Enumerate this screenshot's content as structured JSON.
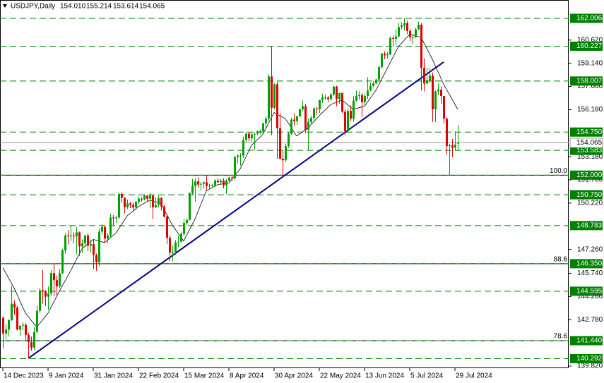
{
  "chart_data": {
    "type": "candlestick",
    "title": "USDJPY,Daily",
    "header_ohlc": [
      "154.010",
      "155.214",
      "153.614",
      "154.065"
    ],
    "up_color": "#00a000",
    "down_color": "#e00000",
    "xlim": [
      -1,
      200.25
    ],
    "ylim": [
      139.684,
      163.176
    ],
    "xticks": [
      {
        "value": 0,
        "label": "14 Dec 2023"
      },
      {
        "value": 16,
        "label": "9 Jan 2024"
      },
      {
        "value": 32,
        "label": "31 Jan 2024"
      },
      {
        "value": 48,
        "label": "22 Feb 2024"
      },
      {
        "value": 64,
        "label": "15 Mar 2024"
      },
      {
        "value": 80,
        "label": "8 Apr 2024"
      },
      {
        "value": 96,
        "label": "30 Apr 2024"
      },
      {
        "value": 112,
        "label": "22 May 2024"
      },
      {
        "value": 128,
        "label": "13 Jun 2024"
      },
      {
        "value": 144,
        "label": "5 Jul 2024"
      },
      {
        "value": 160,
        "label": "29 Jul 2024"
      }
    ],
    "yticks": [
      {
        "value": 160.62,
        "label": "160.620"
      },
      {
        "value": 159.14,
        "label": "159.140"
      },
      {
        "value": 157.66,
        "label": "157.660"
      },
      {
        "value": 156.18,
        "label": "156.180"
      },
      {
        "value": 153.18,
        "label": "153.180"
      },
      {
        "value": 151.7,
        "label": "151.700"
      },
      {
        "value": 150.22,
        "label": "150.220"
      },
      {
        "value": 147.26,
        "label": "147.260"
      },
      {
        "value": 145.74,
        "label": "145.740"
      },
      {
        "value": 144.26,
        "label": "144.260"
      },
      {
        "value": 142.78,
        "label": "142.780"
      },
      {
        "value": 139.82,
        "label": "139.820"
      }
    ],
    "levels": [
      162.006,
      160.227,
      158.007,
      {
        "value": 154.75,
        "label": "154.750"
      },
      153.583,
      {
        "value": 152,
        "label": "152.000"
      },
      {
        "value": 150.75,
        "label": "150.750"
      },
      148.783,
      {
        "value": 146.35,
        "label": "146.350"
      },
      144.595,
      {
        "value": 141.44,
        "label": "141.440"
      },
      140.292
    ],
    "level_color": "#008000",
    "fib_levels": [
      {
        "value": 152,
        "label": "100.0"
      },
      {
        "value": 146.35,
        "label": "88.6"
      },
      {
        "value": 141.44,
        "label": "78.6"
      }
    ],
    "current_price": {
      "value": 154.065,
      "label": "154.065"
    },
    "trendline": {
      "x": [
        9,
        156
      ],
      "values": [
        140.31,
        159.22
      ],
      "color": "#000080"
    },
    "ma": {
      "color": "#000000",
      "x": [
        0,
        4,
        8,
        12,
        16,
        20,
        24,
        28,
        32,
        36,
        40,
        44,
        48,
        52,
        56,
        60,
        64,
        68,
        72,
        76,
        80,
        84,
        88,
        92,
        96,
        100,
        104,
        108,
        112,
        116,
        120,
        124,
        128,
        132,
        136,
        140,
        144,
        148,
        152,
        156,
        161
      ],
      "values": [
        146.1,
        144.8,
        143.2,
        142.3,
        143.2,
        144.6,
        145.9,
        147.3,
        147.9,
        147.7,
        148.3,
        149.4,
        150.0,
        150.4,
        150.2,
        148.8,
        147.8,
        149.2,
        151.0,
        151.4,
        151.5,
        152.4,
        153.9,
        154.6,
        156.0,
        155.6,
        154.5,
        155.0,
        155.8,
        156.5,
        156.8,
        156.2,
        156.4,
        157.4,
        158.8,
        160.2,
        161.0,
        160.8,
        159.4,
        157.8,
        156.2
      ]
    },
    "candles": [
      [
        142.9,
        143.0,
        140.95,
        141.9
      ],
      [
        141.9,
        142.5,
        141.5,
        142.15
      ],
      [
        142.15,
        142.8,
        141.7,
        142.75
      ],
      [
        142.75,
        144.95,
        142.7,
        143.8
      ],
      [
        143.8,
        144.0,
        143.1,
        143.55
      ],
      [
        143.55,
        143.65,
        142.1,
        142.15
      ],
      [
        142.15,
        142.4,
        141.75,
        142.4
      ],
      [
        142.4,
        142.6,
        142.1,
        142.45
      ],
      [
        142.45,
        142.55,
        141.4,
        141.8
      ],
      [
        141.8,
        141.95,
        140.3,
        141.35
      ],
      [
        141.35,
        141.7,
        140.8,
        141.0
      ],
      [
        141.0,
        142.3,
        140.85,
        142.0
      ],
      [
        142.0,
        143.7,
        141.9,
        143.35
      ],
      [
        143.35,
        144.8,
        143.2,
        144.65
      ],
      [
        144.65,
        145.95,
        143.8,
        144.6
      ],
      [
        144.6,
        144.65,
        143.65,
        144.25
      ],
      [
        144.25,
        144.9,
        143.4,
        144.45
      ],
      [
        144.45,
        145.95,
        144.3,
        145.75
      ],
      [
        145.75,
        146.4,
        144.3,
        145.3
      ],
      [
        145.3,
        145.6,
        144.35,
        144.9
      ],
      [
        144.9,
        146.0,
        144.8,
        145.75
      ],
      [
        145.75,
        147.3,
        145.7,
        147.2
      ],
      [
        147.2,
        148.3,
        147.0,
        148.15
      ],
      [
        148.15,
        148.5,
        147.6,
        148.1
      ],
      [
        148.1,
        148.8,
        147.8,
        148.15
      ],
      [
        148.15,
        148.35,
        147.65,
        148.1
      ],
      [
        148.1,
        148.7,
        146.95,
        148.35
      ],
      [
        148.35,
        148.4,
        146.85,
        147.45
      ],
      [
        147.45,
        147.9,
        147.05,
        147.65
      ],
      [
        147.65,
        148.2,
        147.45,
        148.15
      ],
      [
        148.15,
        148.3,
        147.15,
        147.5
      ],
      [
        147.5,
        147.9,
        147.05,
        147.6
      ],
      [
        147.6,
        147.9,
        146.0,
        146.9
      ],
      [
        146.9,
        147.0,
        145.9,
        146.45
      ],
      [
        146.45,
        148.6,
        146.2,
        148.4
      ],
      [
        148.4,
        148.9,
        148.2,
        148.7
      ],
      [
        148.7,
        148.75,
        147.65,
        147.95
      ],
      [
        147.95,
        148.3,
        147.65,
        148.15
      ],
      [
        148.15,
        149.55,
        148.0,
        149.3
      ],
      [
        149.3,
        149.45,
        148.8,
        149.25
      ],
      [
        149.25,
        149.4,
        148.95,
        149.3
      ],
      [
        149.3,
        150.9,
        149.2,
        150.8
      ],
      [
        150.8,
        150.9,
        150.25,
        150.55
      ],
      [
        150.55,
        150.6,
        149.55,
        149.95
      ],
      [
        149.95,
        150.45,
        149.85,
        150.2
      ],
      [
        150.2,
        150.3,
        149.9,
        150.1
      ],
      [
        150.1,
        150.25,
        149.7,
        149.95
      ],
      [
        149.95,
        150.35,
        149.8,
        150.3
      ],
      [
        150.3,
        150.65,
        150.15,
        150.5
      ],
      [
        150.5,
        150.6,
        150.3,
        150.45
      ],
      [
        150.45,
        150.75,
        150.4,
        150.7
      ],
      [
        150.7,
        150.7,
        150.3,
        150.5
      ],
      [
        150.5,
        150.85,
        149.9,
        150.7
      ],
      [
        150.7,
        150.7,
        149.2,
        149.95
      ],
      [
        149.95,
        150.6,
        149.9,
        150.1
      ],
      [
        150.1,
        150.7,
        149.95,
        150.55
      ],
      [
        150.55,
        150.6,
        149.75,
        150.0
      ],
      [
        150.0,
        150.1,
        149.3,
        149.35
      ],
      [
        149.35,
        149.45,
        147.6,
        148.0
      ],
      [
        148.0,
        148.15,
        146.5,
        147.05
      ],
      [
        147.05,
        147.5,
        146.5,
        147.1
      ],
      [
        147.1,
        147.85,
        146.9,
        147.7
      ],
      [
        147.7,
        148.15,
        147.4,
        147.75
      ],
      [
        147.75,
        148.4,
        147.7,
        148.25
      ],
      [
        148.25,
        149.2,
        148.1,
        148.95
      ],
      [
        148.95,
        149.2,
        148.8,
        149.15
      ],
      [
        149.15,
        150.9,
        149.1,
        150.85
      ],
      [
        150.85,
        151.75,
        150.75,
        151.3
      ],
      [
        151.3,
        151.8,
        150.3,
        151.6
      ],
      [
        151.6,
        151.85,
        151.2,
        151.4
      ],
      [
        151.4,
        151.55,
        151.0,
        151.45
      ],
      [
        151.45,
        151.6,
        151.15,
        151.55
      ],
      [
        151.55,
        151.95,
        151.05,
        151.3
      ],
      [
        151.3,
        151.45,
        151.1,
        151.35
      ],
      [
        151.35,
        151.45,
        151.2,
        151.35
      ],
      [
        151.35,
        151.75,
        151.25,
        151.65
      ],
      [
        151.65,
        151.8,
        151.5,
        151.55
      ],
      [
        151.55,
        151.75,
        151.45,
        151.65
      ],
      [
        151.65,
        151.8,
        151.15,
        151.35
      ],
      [
        151.35,
        151.75,
        150.8,
        151.65
      ],
      [
        151.65,
        151.9,
        151.6,
        151.85
      ],
      [
        151.85,
        151.95,
        151.65,
        151.8
      ],
      [
        151.8,
        153.25,
        151.7,
        153.15
      ],
      [
        153.15,
        153.35,
        152.75,
        153.25
      ],
      [
        153.25,
        153.4,
        152.6,
        153.25
      ],
      [
        153.25,
        154.45,
        153.1,
        154.25
      ],
      [
        154.25,
        154.75,
        154.1,
        154.65
      ],
      [
        154.65,
        154.75,
        154.15,
        154.35
      ],
      [
        154.35,
        154.7,
        154.1,
        154.6
      ],
      [
        154.6,
        154.7,
        153.6,
        154.65
      ],
      [
        154.65,
        154.85,
        154.55,
        154.8
      ],
      [
        154.8,
        154.9,
        154.6,
        154.8
      ],
      [
        154.8,
        155.35,
        154.7,
        155.3
      ],
      [
        155.3,
        155.75,
        155.1,
        155.6
      ],
      [
        155.6,
        158.45,
        155.45,
        158.3
      ],
      [
        158.3,
        160.2,
        154.55,
        156.3
      ],
      [
        156.3,
        157.85,
        156.2,
        157.8
      ],
      [
        157.8,
        157.95,
        153.05,
        155.0
      ],
      [
        155.0,
        155.95,
        153.0,
        153.05
      ],
      [
        153.05,
        153.55,
        151.85,
        152.95
      ],
      [
        152.95,
        154.0,
        152.85,
        153.85
      ],
      [
        153.85,
        154.75,
        153.75,
        154.65
      ],
      [
        154.65,
        155.65,
        154.55,
        155.55
      ],
      [
        155.55,
        155.95,
        155.15,
        155.45
      ],
      [
        155.45,
        155.8,
        155.2,
        155.75
      ],
      [
        155.75,
        156.25,
        155.7,
        156.2
      ],
      [
        156.2,
        156.75,
        156.1,
        156.4
      ],
      [
        156.4,
        156.55,
        154.7,
        154.9
      ],
      [
        154.9,
        155.6,
        153.6,
        155.4
      ],
      [
        155.4,
        155.8,
        155.2,
        155.65
      ],
      [
        155.65,
        156.35,
        155.5,
        156.25
      ],
      [
        156.25,
        156.35,
        155.85,
        156.2
      ],
      [
        156.2,
        156.8,
        155.95,
        156.8
      ],
      [
        156.8,
        157.2,
        156.6,
        156.95
      ],
      [
        156.95,
        157.15,
        156.8,
        156.95
      ],
      [
        156.95,
        157.05,
        156.65,
        156.85
      ],
      [
        156.85,
        157.25,
        156.75,
        157.15
      ],
      [
        157.15,
        157.7,
        157.05,
        157.65
      ],
      [
        157.65,
        157.7,
        156.4,
        156.85
      ],
      [
        156.85,
        157.2,
        156.55,
        157.25
      ],
      [
        157.25,
        157.25,
        155.95,
        156.05
      ],
      [
        156.05,
        156.2,
        154.55,
        154.8
      ],
      [
        154.8,
        156.25,
        154.7,
        156.1
      ],
      [
        156.1,
        156.45,
        155.45,
        155.6
      ],
      [
        155.6,
        157.05,
        155.4,
        156.75
      ],
      [
        156.75,
        157.4,
        156.7,
        157.05
      ],
      [
        157.05,
        157.35,
        156.8,
        157.1
      ],
      [
        157.1,
        157.25,
        155.7,
        156.65
      ],
      [
        156.65,
        157.2,
        156.5,
        157.05
      ],
      [
        157.05,
        158.25,
        156.85,
        157.4
      ],
      [
        157.4,
        157.9,
        157.35,
        157.7
      ],
      [
        157.7,
        158.0,
        157.6,
        157.85
      ],
      [
        157.85,
        158.15,
        157.8,
        158.1
      ],
      [
        158.1,
        159.0,
        158.0,
        158.9
      ],
      [
        158.9,
        159.8,
        158.8,
        159.75
      ],
      [
        159.75,
        159.9,
        159.4,
        159.65
      ],
      [
        159.65,
        159.85,
        159.45,
        159.7
      ],
      [
        159.7,
        160.85,
        159.65,
        160.75
      ],
      [
        160.75,
        160.9,
        160.2,
        160.7
      ],
      [
        160.7,
        161.3,
        160.3,
        160.85
      ],
      [
        160.85,
        161.7,
        160.8,
        161.45
      ],
      [
        161.45,
        161.75,
        161.3,
        161.55
      ],
      [
        161.55,
        162.0,
        161.25,
        161.7
      ],
      [
        161.7,
        161.85,
        161.0,
        161.2
      ],
      [
        161.2,
        161.35,
        160.55,
        160.8
      ],
      [
        160.8,
        161.0,
        160.35,
        160.8
      ],
      [
        160.8,
        161.4,
        160.75,
        161.3
      ],
      [
        161.3,
        161.8,
        161.25,
        161.6
      ],
      [
        161.6,
        161.7,
        157.4,
        158.85
      ],
      [
        158.85,
        159.45,
        157.35,
        157.85
      ],
      [
        157.85,
        158.85,
        157.8,
        158.05
      ],
      [
        158.05,
        158.85,
        157.9,
        158.35
      ],
      [
        158.35,
        158.55,
        155.4,
        156.2
      ],
      [
        156.2,
        157.4,
        155.4,
        157.35
      ],
      [
        157.35,
        157.85,
        157.1,
        157.45
      ],
      [
        157.45,
        157.65,
        156.55,
        157.05
      ],
      [
        157.05,
        157.05,
        155.3,
        155.6
      ],
      [
        155.6,
        155.7,
        153.3,
        153.85
      ],
      [
        153.85,
        154.0,
        151.95,
        153.9
      ],
      [
        153.9,
        154.3,
        153.15,
        153.75
      ],
      [
        153.75,
        154.8,
        153.55,
        153.95
      ],
      [
        154.01,
        155.214,
        153.614,
        154.065
      ]
    ]
  }
}
